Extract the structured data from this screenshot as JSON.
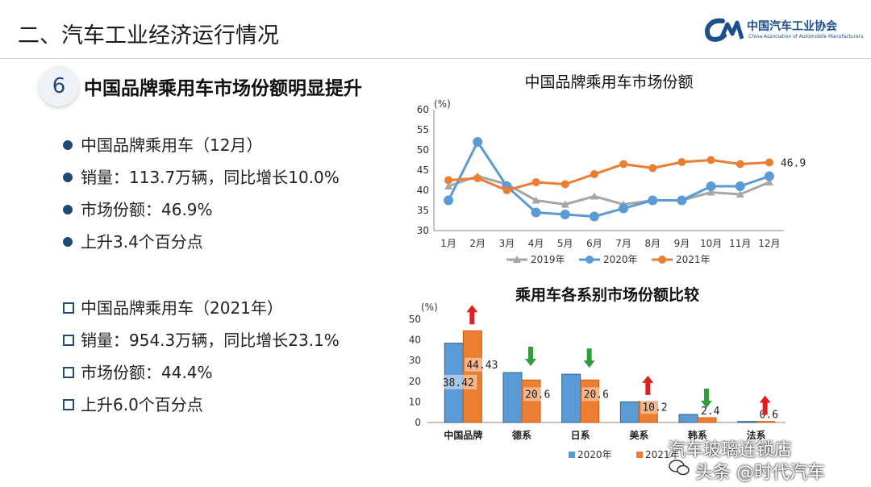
{
  "slide": {
    "title": "二、汽车工业经济运行情况",
    "logo_cn": "中国汽车工业协会",
    "logo_en": "China Association of Automobile Manufacturers",
    "section_number": "6",
    "heading": "中国品牌乘用车市场份额明显提升"
  },
  "bullets_dec": [
    "中国品牌乘用车（12月）",
    "销量：113.7万辆，同比增长10.0%",
    "市场份额：46.9%",
    "上升3.4个百分点"
  ],
  "bullets_year": [
    "中国品牌乘用车（2021年）",
    "销量：954.3万辆，同比增长23.1%",
    "市场份额：44.4%",
    "上升6.0个百分点"
  ],
  "watermark": {
    "line1": "汽车玻璃连锁店",
    "line2": "头条 @时代汽车"
  },
  "colors": {
    "accent": "#1f4a7a",
    "series_2019": "#a6a6a6",
    "series_2020": "#5b9bd5",
    "series_2021": "#ed7d31",
    "arrow_up": "#e02020",
    "arrow_down": "#2e9e3a"
  },
  "chart_data": [
    {
      "type": "line",
      "title": "中国品牌乘用车市场份额",
      "unit_label": "(%)",
      "categories": [
        "1月",
        "2月",
        "3月",
        "4月",
        "5月",
        "6月",
        "7月",
        "8月",
        "9月",
        "10月",
        "11月",
        "12月"
      ],
      "ylim": [
        30,
        60
      ],
      "yticks": [
        "30",
        "35",
        "40",
        "45",
        "50",
        "55",
        "60"
      ],
      "series": [
        {
          "name": "2019年",
          "values": [
            41.0,
            43.5,
            41.5,
            37.5,
            36.5,
            38.5,
            36.5,
            37.5,
            37.5,
            39.5,
            39.0,
            42.0
          ]
        },
        {
          "name": "2020年",
          "values": [
            37.5,
            52.0,
            41.0,
            34.5,
            34.0,
            33.5,
            35.5,
            37.5,
            37.5,
            41.0,
            41.0,
            43.5
          ]
        },
        {
          "name": "2021年",
          "values": [
            42.5,
            43.0,
            40.0,
            42.0,
            41.5,
            44.0,
            46.5,
            45.5,
            47.0,
            47.5,
            46.5,
            46.9
          ]
        }
      ],
      "end_label": "46.9",
      "legend": "bottom"
    },
    {
      "type": "bar",
      "title": "乘用车各系别市场份额比较",
      "unit_label": "(%)",
      "categories": [
        "中国品牌",
        "德系",
        "日系",
        "美系",
        "韩系",
        "法系"
      ],
      "ylim": [
        0,
        50
      ],
      "yticks": [
        "0",
        "10",
        "20",
        "30",
        "40",
        "50"
      ],
      "series": [
        {
          "name": "2020年",
          "values": [
            38.42,
            24.2,
            23.4,
            10.0,
            3.9,
            0.5
          ]
        },
        {
          "name": "2021年",
          "values": [
            44.43,
            20.6,
            20.6,
            10.2,
            2.4,
            0.6
          ]
        }
      ],
      "data_labels_2020": [
        "38.42",
        "",
        "",
        "",
        "",
        ""
      ],
      "data_labels_2021": [
        "44.43",
        "20.6",
        "20.6",
        "10.2",
        "2.4",
        "0.6"
      ],
      "arrows": [
        "up",
        "down",
        "down",
        "up",
        "down",
        "up"
      ],
      "legend": "bottom"
    }
  ]
}
